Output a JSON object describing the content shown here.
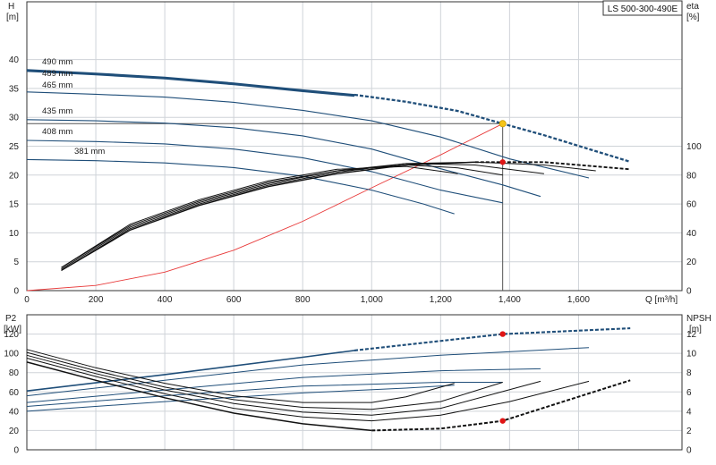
{
  "chart_data": [
    {
      "type": "line",
      "title": "LS 500-300-490E",
      "xlabel": "Q [m³/h]",
      "ylabel_left": [
        "H",
        "[m]"
      ],
      "ylabel_right": [
        "eta",
        "[%]"
      ],
      "xlim": [
        0,
        1900
      ],
      "ylim_left": [
        0,
        50
      ],
      "ylim_right": [
        0,
        200
      ],
      "grid": true,
      "x_ticks": [
        0,
        200,
        400,
        600,
        800,
        1000,
        1200,
        1400,
        1600
      ],
      "x_tick_labels": [
        "0",
        "200",
        "400",
        "600",
        "800",
        "1,000",
        "1,200",
        "1,400",
        "1,600"
      ],
      "y_ticks_left": [
        0,
        5,
        10,
        15,
        20,
        25,
        30,
        35,
        40
      ],
      "y_ticks_right": [
        0,
        20,
        40,
        60,
        80,
        100
      ],
      "head_curves": [
        {
          "label": "490 mm",
          "x": [
            0,
            200,
            400,
            600,
            800,
            950,
            1100,
            1250,
            1380,
            1500,
            1630,
            1750
          ],
          "y": [
            38.2,
            37.6,
            36.9,
            35.9,
            34.7,
            33.9,
            32.7,
            31.1,
            28.9,
            26.9,
            24.5,
            22.3
          ],
          "dashed_from": 950
        },
        {
          "label": "489 mm",
          "x": [
            0,
            200,
            400,
            600,
            800,
            950
          ],
          "y": [
            38.0,
            37.4,
            36.7,
            35.7,
            34.5,
            33.7
          ]
        },
        {
          "label": "465 mm",
          "x": [
            0,
            200,
            400,
            600,
            800,
            1000,
            1200,
            1400,
            1630
          ],
          "y": [
            34.4,
            34.0,
            33.5,
            32.6,
            31.2,
            29.4,
            26.6,
            22.8,
            19.5
          ]
        },
        {
          "label": "435 mm",
          "x": [
            0,
            200,
            400,
            600,
            800,
            1000,
            1200,
            1380,
            1490
          ],
          "y": [
            29.6,
            29.4,
            29.0,
            28.2,
            26.8,
            24.5,
            21.1,
            18.3,
            16.3
          ]
        },
        {
          "label": "408 mm",
          "x": [
            0,
            200,
            400,
            600,
            800,
            1000,
            1200,
            1380
          ],
          "y": [
            26.0,
            25.8,
            25.4,
            24.5,
            23.0,
            20.6,
            17.4,
            15.2
          ]
        },
        {
          "label": "381 mm",
          "x": [
            0,
            200,
            400,
            600,
            800,
            1000,
            1150,
            1240
          ],
          "y": [
            22.7,
            22.5,
            22.1,
            21.3,
            19.8,
            17.4,
            15.0,
            13.3
          ]
        }
      ],
      "efficiency_curves": [
        {
          "x": [
            100,
            300,
            500,
            700,
            900,
            1100,
            1300,
            1500,
            1750
          ],
          "y": [
            14,
            42,
            59,
            72,
            81,
            87,
            89,
            89,
            84
          ],
          "dashed_from": 1300
        },
        {
          "x": [
            100,
            300,
            500,
            700,
            900,
            1100,
            1300,
            1500,
            1650
          ],
          "y": [
            14,
            43,
            60,
            73,
            82,
            88,
            89,
            87,
            83
          ]
        },
        {
          "x": [
            100,
            300,
            500,
            700,
            900,
            1100,
            1300,
            1500
          ],
          "y": [
            15,
            44,
            61,
            74,
            83,
            88,
            87,
            81
          ]
        },
        {
          "x": [
            100,
            300,
            500,
            700,
            900,
            1100,
            1250,
            1380
          ],
          "y": [
            16,
            45,
            62,
            75,
            83,
            87,
            85,
            80
          ]
        },
        {
          "x": [
            100,
            300,
            500,
            700,
            900,
            1100,
            1250
          ],
          "y": [
            16,
            46,
            63,
            76,
            84,
            86,
            81
          ]
        }
      ],
      "system_curve": {
        "x": [
          0,
          200,
          400,
          600,
          800,
          1000,
          1200,
          1380
        ],
        "y": [
          0,
          0.9,
          3.2,
          7.0,
          12.0,
          17.8,
          23.5,
          28.9
        ]
      },
      "duty_point": {
        "x": 1380,
        "head": 28.9,
        "eta": 89
      }
    },
    {
      "type": "line",
      "ylabel_left": [
        "P2",
        "[kW]"
      ],
      "ylabel_right": [
        "NPSH",
        "[m]"
      ],
      "xlim": [
        0,
        1900
      ],
      "ylim_left": [
        0,
        140
      ],
      "ylim_right": [
        0,
        14
      ],
      "grid": true,
      "y_ticks_left": [
        0,
        20,
        40,
        60,
        80,
        100,
        120
      ],
      "y_ticks_right": [
        0,
        2,
        4,
        6,
        8,
        10,
        12
      ],
      "power_curves": [
        {
          "x": [
            0,
            400,
            800,
            950,
            1380,
            1750
          ],
          "y": [
            61,
            78,
            96,
            103,
            120,
            126
          ],
          "dashed_from": 950
        },
        {
          "x": [
            0,
            400,
            800,
            1200,
            1630
          ],
          "y": [
            56,
            72,
            88,
            98,
            106
          ]
        },
        {
          "x": [
            0,
            400,
            800,
            1200,
            1490
          ],
          "y": [
            49,
            62,
            75,
            82,
            84
          ]
        },
        {
          "x": [
            0,
            400,
            800,
            1200,
            1380
          ],
          "y": [
            45,
            56,
            66,
            70,
            70
          ]
        },
        {
          "x": [
            0,
            400,
            800,
            1100,
            1240
          ],
          "y": [
            40,
            50,
            59,
            64,
            67
          ]
        }
      ],
      "npsh_curves": [
        {
          "x": [
            0,
            200,
            400,
            600,
            800,
            1000,
            1200,
            1380,
            1750
          ],
          "y": [
            9.1,
            7.2,
            5.4,
            3.8,
            2.7,
            2.0,
            2.2,
            3.0,
            7.2
          ],
          "dashed_from": 1000
        },
        {
          "x": [
            0,
            200,
            400,
            600,
            800,
            1000,
            1200,
            1400,
            1630
          ],
          "y": [
            9.5,
            7.6,
            5.8,
            4.3,
            3.4,
            3.0,
            3.6,
            5.0,
            7.1
          ]
        },
        {
          "x": [
            0,
            200,
            400,
            600,
            800,
            1000,
            1200,
            1490
          ],
          "y": [
            9.8,
            7.9,
            6.2,
            4.8,
            3.9,
            3.6,
            4.3,
            7.1
          ]
        },
        {
          "x": [
            0,
            200,
            400,
            600,
            800,
            1000,
            1200,
            1380
          ],
          "y": [
            10.1,
            8.2,
            6.5,
            5.2,
            4.4,
            4.2,
            5.0,
            7.0
          ]
        },
        {
          "x": [
            0,
            200,
            400,
            600,
            800,
            1000,
            1100,
            1240
          ],
          "y": [
            10.4,
            8.5,
            6.9,
            5.6,
            4.9,
            4.9,
            5.5,
            6.9
          ]
        }
      ],
      "duty_point": {
        "x": 1380,
        "p2": 120,
        "npsh": 3.0
      }
    }
  ],
  "colors": {
    "head_curve": "#1f4e79",
    "eff_curve": "#111111",
    "system_curve": "#e83a3a",
    "duty_marker_top": "#f5c518",
    "duty_marker": "#e01515",
    "grid": "#cfd3d8"
  }
}
